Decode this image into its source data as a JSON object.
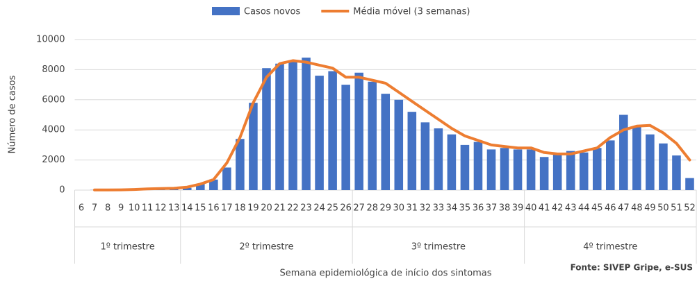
{
  "chart_data": {
    "type": "bar",
    "categories": [
      "6",
      "7",
      "8",
      "9",
      "10",
      "11",
      "12",
      "13",
      "14",
      "15",
      "16",
      "17",
      "18",
      "19",
      "20",
      "21",
      "22",
      "23",
      "24",
      "25",
      "26",
      "27",
      "28",
      "29",
      "30",
      "31",
      "32",
      "33",
      "34",
      "35",
      "36",
      "37",
      "38",
      "39",
      "40",
      "41",
      "42",
      "43",
      "44",
      "45",
      "46",
      "47",
      "48",
      "49",
      "50",
      "51",
      "52"
    ],
    "series": [
      {
        "name": "Casos novos",
        "type": "bar",
        "color": "#4472c4",
        "values": [
          0,
          10,
          10,
          20,
          40,
          80,
          100,
          100,
          150,
          400,
          700,
          1500,
          3400,
          5800,
          8100,
          8400,
          8600,
          8800,
          7600,
          7900,
          7000,
          7800,
          7200,
          6400,
          6000,
          5200,
          4500,
          4100,
          3700,
          3000,
          3200,
          2700,
          2800,
          2700,
          2700,
          2200,
          2400,
          2600,
          2500,
          2800,
          3300,
          5000,
          4200,
          3700,
          3100,
          2300,
          800
        ]
      },
      {
        "name": "Média móvel (3 semanas)",
        "type": "line",
        "color": "#ed7d31",
        "values": [
          null,
          10,
          15,
          20,
          40,
          80,
          100,
          120,
          200,
          400,
          700,
          1800,
          3500,
          5800,
          7500,
          8400,
          8600,
          8500,
          8300,
          8100,
          7500,
          7500,
          7300,
          7100,
          6500,
          5900,
          5300,
          4700,
          4100,
          3600,
          3300,
          3000,
          2900,
          2800,
          2800,
          2500,
          2400,
          2400,
          2600,
          2800,
          3500,
          4000,
          4250,
          4300,
          3800,
          3100,
          2000
        ]
      }
    ],
    "groups": [
      {
        "label": "1º trimestre",
        "first": "6",
        "last": "13"
      },
      {
        "label": "2º trimestre",
        "first": "14",
        "last": "26"
      },
      {
        "label": "3º trimestre",
        "first": "27",
        "last": "39"
      },
      {
        "label": "4º trimestre",
        "first": "40",
        "last": "52"
      }
    ],
    "ylim": [
      0,
      10000
    ],
    "yticks": [
      0,
      2000,
      4000,
      6000,
      8000,
      10000
    ],
    "grid": true,
    "legend": "top",
    "y_label": "Número de casos",
    "x_label": "Semana epidemiológica de início dos sintomas",
    "source": "Fonte: SIVEP Gripe, e-SUS"
  }
}
